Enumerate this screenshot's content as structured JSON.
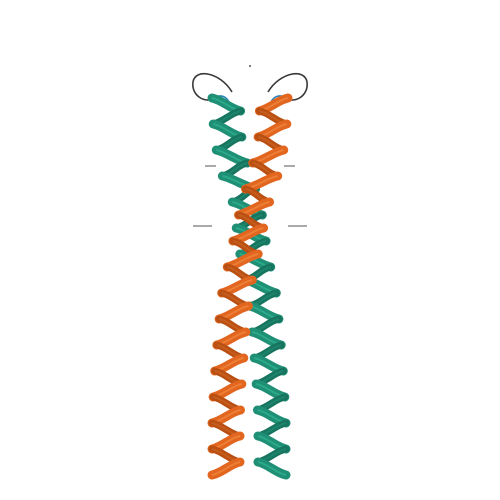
{
  "image": {
    "subject": "protein-ribbon-dimer",
    "background_color": "#ffffff",
    "chains": [
      {
        "id": "A",
        "color": "#1f8f75",
        "shade": "#17745f",
        "highlight": "#2fb392"
      },
      {
        "id": "B",
        "color": "#e2661f",
        "shade": "#b94f12",
        "highlight": "#f1893f"
      }
    ],
    "loop_color": "#3a3a3a",
    "small_loop_accent": "#2a7fb8",
    "side_marks_color": "#555555"
  }
}
